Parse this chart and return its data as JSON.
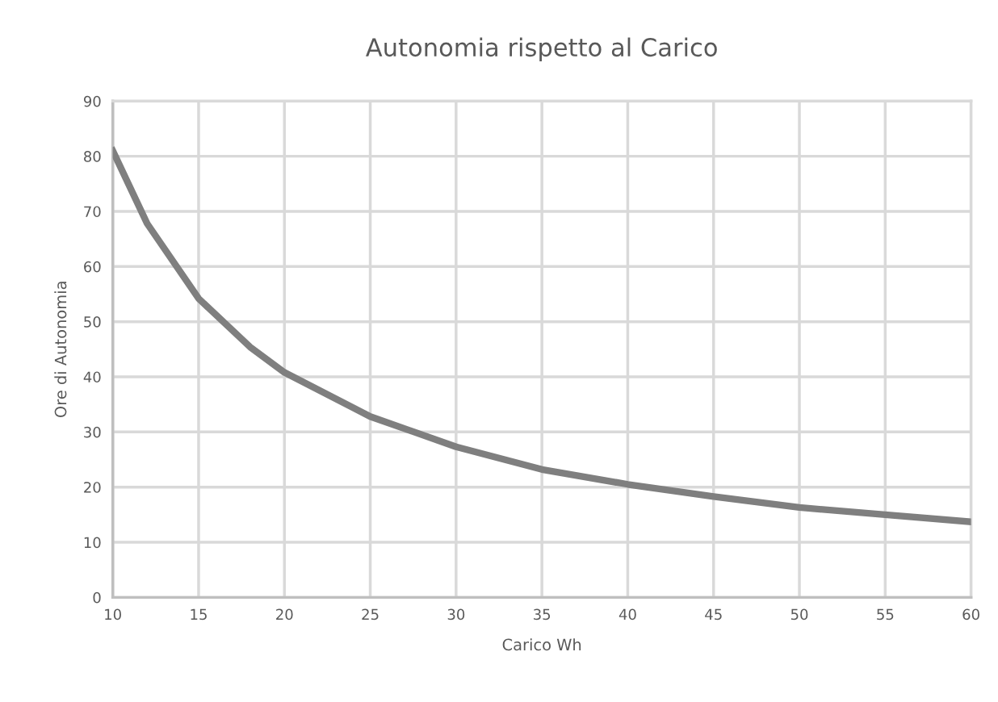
{
  "chart_data": {
    "type": "line",
    "title": "Autonomia rispetto al Carico",
    "xlabel": "Carico Wh",
    "ylabel": "Ore di Autonomia",
    "x": [
      10,
      12,
      15,
      18,
      20,
      25,
      30,
      35,
      40,
      45,
      50,
      55,
      60
    ],
    "series": [
      {
        "color": "#7f7f7f",
        "values": [
          81,
          67.8,
          54.2,
          45.4,
          40.8,
          32.8,
          27.3,
          23.2,
          20.5,
          18.3,
          16.3,
          15.0,
          13.7
        ]
      }
    ],
    "xlim": [
      10,
      60
    ],
    "xticks": [
      10,
      15,
      20,
      25,
      30,
      35,
      40,
      45,
      50,
      55,
      60
    ],
    "ylim": [
      0,
      90
    ],
    "yticks": [
      0,
      10,
      20,
      30,
      40,
      50,
      60,
      70,
      80,
      90
    ],
    "grid": true,
    "marker": "none",
    "line_style": "solid"
  }
}
